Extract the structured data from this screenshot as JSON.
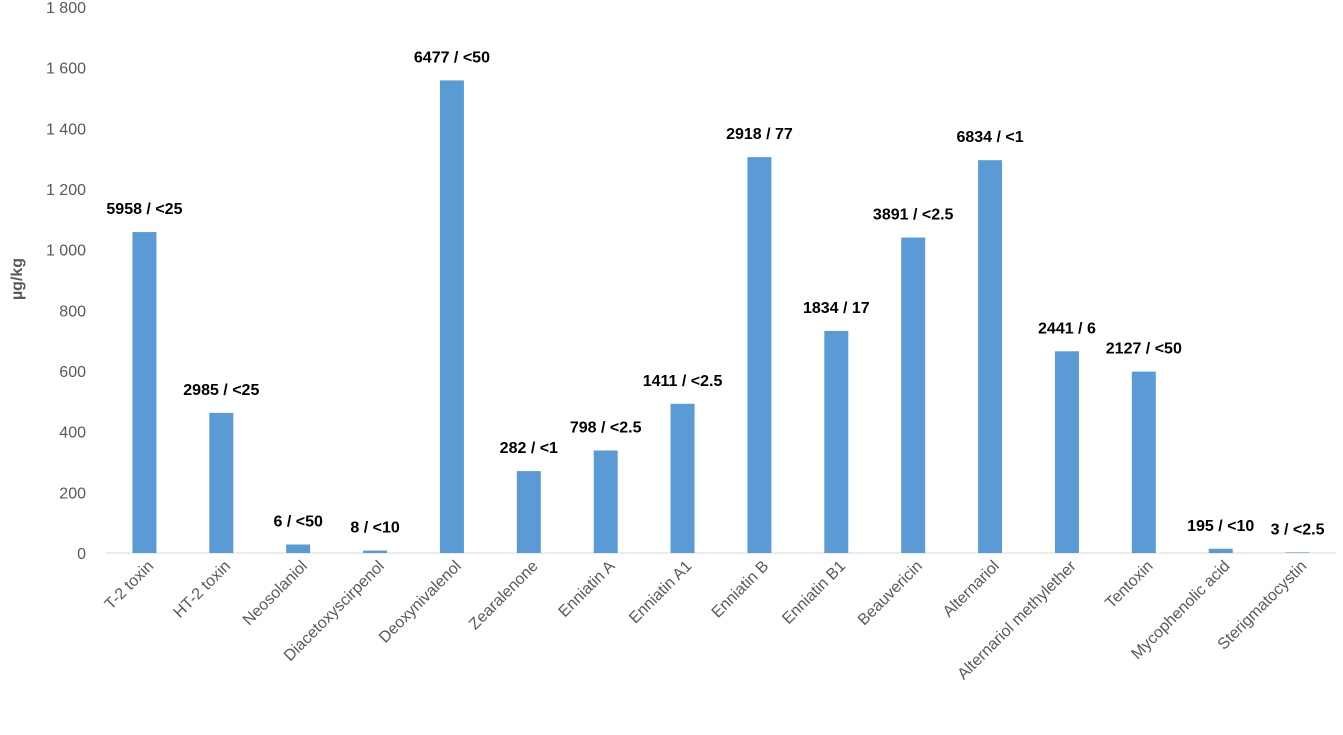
{
  "chart_data": {
    "type": "bar",
    "title": "",
    "xlabel": "",
    "ylabel": "µg/kg",
    "ylim": [
      0,
      1800
    ],
    "yticks": [
      0,
      200,
      400,
      600,
      800,
      1000,
      1200,
      1400,
      1600,
      1800
    ],
    "ytick_labels": [
      "0",
      "200",
      "400",
      "600",
      "800",
      "1 000",
      "1 200",
      "1 400",
      "1 600",
      "1 800"
    ],
    "grid": false,
    "legend": "none",
    "bar_color": "#5b9bd5",
    "categories": [
      "T-2 toxin",
      "HT-2 toxin",
      "Neosolaniol",
      "Diacetoxyscirpenol",
      "Deoxynivalenol",
      "Zearalenone",
      "Enniatin A",
      "Enniatin A1",
      "Enniatin B",
      "Enniatin B1",
      "Beauvericin",
      "Alternariol",
      "Alternariol methylether",
      "Tentoxin",
      "Mycophenolic acid",
      "Sterigmatocystin"
    ],
    "values": [
      1058,
      462,
      28,
      8,
      1558,
      270,
      338,
      492,
      1305,
      732,
      1040,
      1295,
      665,
      598,
      14,
      2
    ],
    "data_labels": [
      "5958 / <25",
      "2985 / <25",
      "6 / <50",
      "8 / <10",
      "6477 / <50",
      "282 / <1",
      "798 / <2.5",
      "1411 / <2.5",
      "2918 / 77",
      "1834 / 17",
      "3891 / <2.5",
      "6834 / <1",
      "2441 / 6",
      "2127 / <50",
      "195 / <10",
      "3 / <2.5"
    ]
  }
}
